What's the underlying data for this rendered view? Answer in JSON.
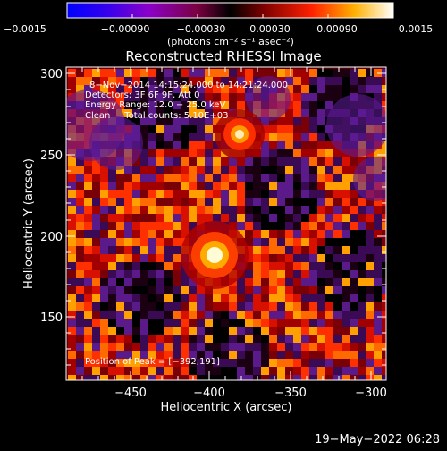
{
  "colorbar": {
    "ticks": [
      "−0.0015",
      "−0.00090",
      "−0.00030",
      "0.00030",
      "0.00090",
      "0.0015"
    ],
    "units": "(photons cm⁻² s⁻¹ asec⁻²)"
  },
  "plot": {
    "title": "Reconstructed RHESSI Image",
    "info_lines": [
      "8−Nov−2014 14:15:24.000 to 14:21:24.000",
      "Detectors: 3F 6F 9F, Att 0",
      "Energy Range: 12.0 − 25.0 keV",
      "Clean     Total counts: 5.10E+03"
    ],
    "peak_label": "Position of Peak = [−392,191]",
    "x_axis": {
      "label": "Heliocentric X (arcsec)",
      "ticks": [
        "−450",
        "−400",
        "−350",
        "−300"
      ]
    },
    "y_axis": {
      "label": "Heliocentric Y (arcsec)",
      "ticks": [
        "150",
        "200",
        "250",
        "300"
      ]
    }
  },
  "footer": {
    "timestamp": "19−May−2022 06:28"
  }
}
